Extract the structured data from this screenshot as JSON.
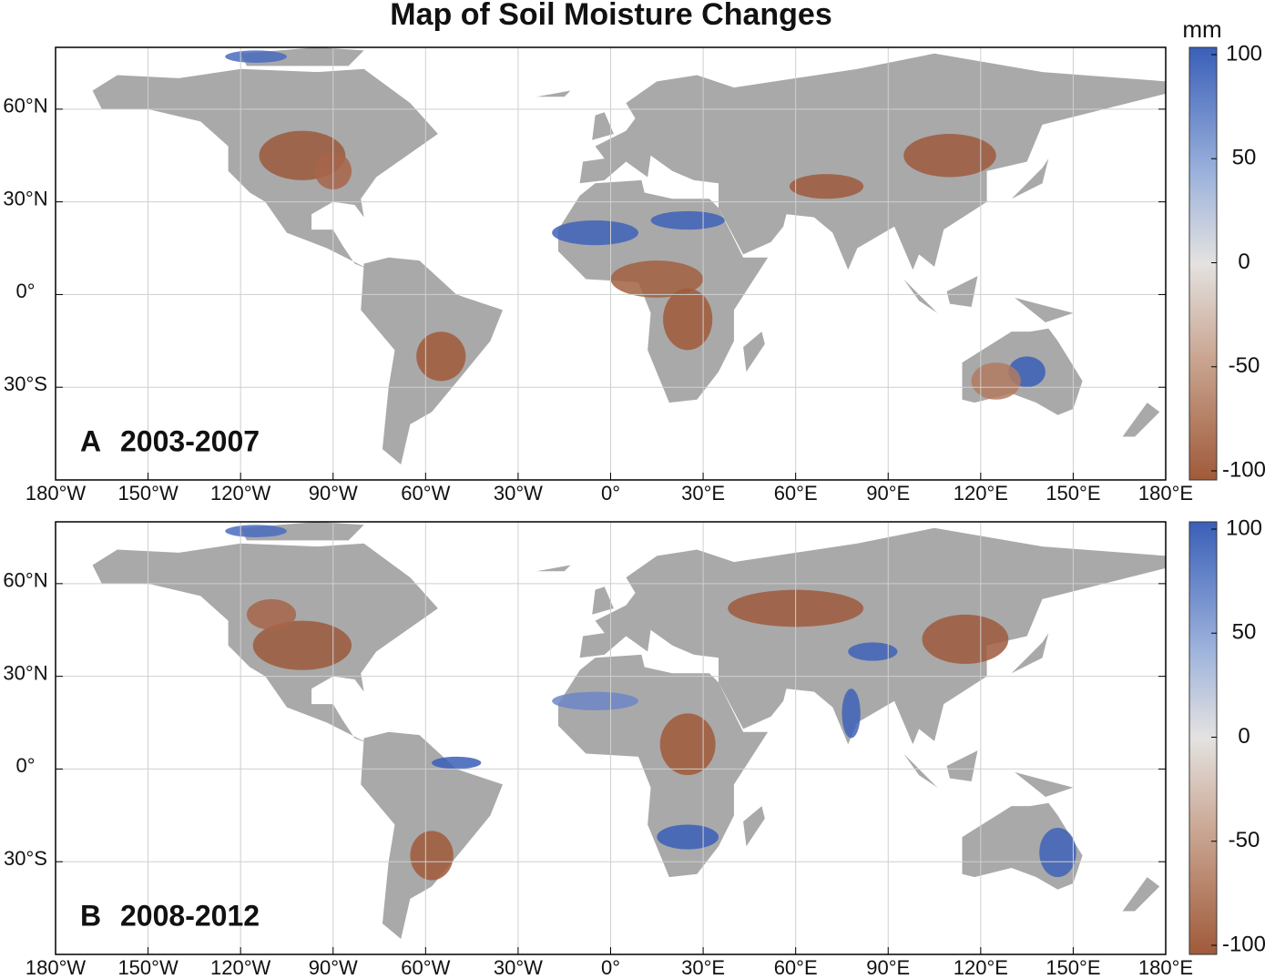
{
  "title": "Map of Soil Moisture Changes",
  "unit": "mm",
  "panels": [
    {
      "label": "A",
      "period": "2003-2007"
    },
    {
      "label": "B",
      "period": "2008-2012"
    }
  ],
  "xlim": [
    -180,
    180
  ],
  "ylim": [
    -60,
    80
  ],
  "xticks": [
    {
      "value": -180,
      "label": "180°W"
    },
    {
      "value": -150,
      "label": "150°W"
    },
    {
      "value": -120,
      "label": "120°W"
    },
    {
      "value": -90,
      "label": "90°W"
    },
    {
      "value": -60,
      "label": "60°W"
    },
    {
      "value": -30,
      "label": "30°W"
    },
    {
      "value": 0,
      "label": "0°"
    },
    {
      "value": 30,
      "label": "30°E"
    },
    {
      "value": 60,
      "label": "60°E"
    },
    {
      "value": 90,
      "label": "90°E"
    },
    {
      "value": 120,
      "label": "120°E"
    },
    {
      "value": 150,
      "label": "150°E"
    },
    {
      "value": 180,
      "label": "180°E"
    }
  ],
  "yticks": [
    {
      "value": 60,
      "label": "60°N"
    },
    {
      "value": 30,
      "label": "30°N"
    },
    {
      "value": 0,
      "label": "0°"
    },
    {
      "value": -30,
      "label": "30°S"
    }
  ],
  "colorbar": {
    "lim": [
      -100,
      100
    ],
    "ticks": [
      100,
      50,
      0,
      -50,
      -100
    ]
  }
}
